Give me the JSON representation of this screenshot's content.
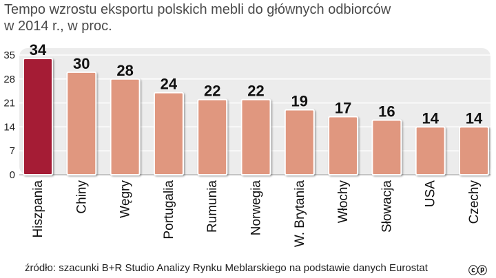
{
  "title_line1": "Tempo wzrostu eksportu polskich mebli do głównych odbiorców",
  "title_line2": "w 2014 r., w proc.",
  "source": "źródło: szacunki B+R Studio Analizy Rynku Meblarskiego na podstawie danych Eurostat",
  "copyright_mark": "cp",
  "colors": {
    "highlight_bar": "#a51d35",
    "bar": "#e0977f",
    "panel": "#ececec",
    "grid": "#ffffff",
    "label": "#111111"
  },
  "chart_data": {
    "type": "bar",
    "title": "Tempo wzrostu eksportu polskich mebli do głównych odbiorców w 2014 r., w proc.",
    "xlabel": "",
    "ylabel": "",
    "ylim": [
      0,
      35
    ],
    "yticks": [
      0,
      7,
      14,
      21,
      28,
      35
    ],
    "grid": true,
    "highlight_index": 0,
    "categories": [
      "Hiszpania",
      "Chiny",
      "Węgry",
      "Portugalia",
      "Rumunia",
      "Norwegia",
      "W. Brytania",
      "Włochy",
      "Słowacja",
      "USA",
      "Czechy"
    ],
    "values": [
      34,
      30,
      28,
      24,
      22,
      22,
      19,
      17,
      16,
      14,
      14
    ]
  }
}
